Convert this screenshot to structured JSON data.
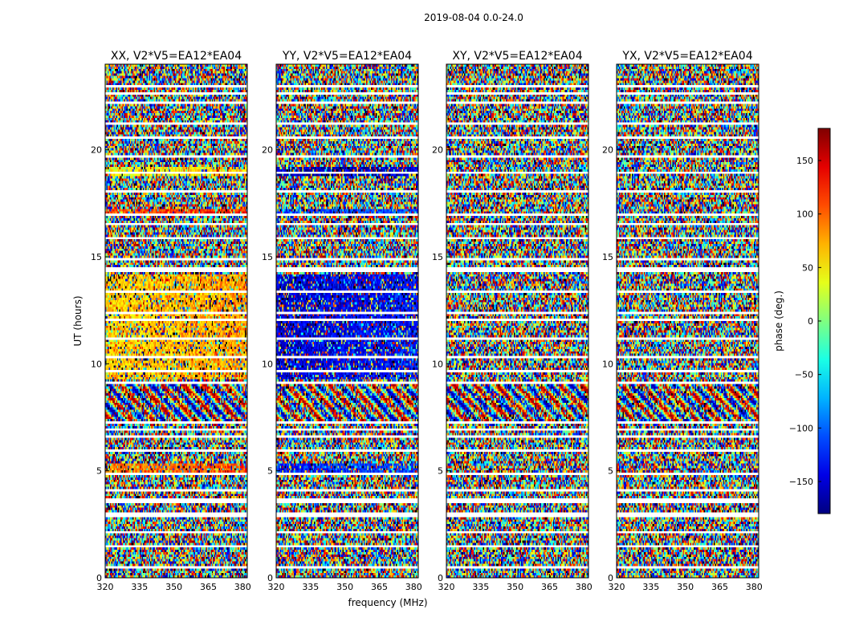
{
  "suptitle": "2019-08-04 0.0-24.0",
  "chart_data": {
    "type": "heatmap",
    "title": "2019-08-04 0.0-24.0",
    "xlabel": "frequency (MHz)",
    "ylabel": "UT (hours)",
    "xlim": [
      320,
      382
    ],
    "ylim": [
      0,
      24
    ],
    "xticks": [
      320,
      335,
      350,
      365,
      380
    ],
    "yticks": [
      0,
      5,
      10,
      15,
      20
    ],
    "panels": [
      {
        "title": "XX, V2*V5=EA12*EA04",
        "pol": "XX"
      },
      {
        "title": "YY, V2*V5=EA12*EA04",
        "pol": "YY"
      },
      {
        "title": "XY, V2*V5=EA12*EA04",
        "pol": "XY"
      },
      {
        "title": "YX, V2*V5=EA12*EA04",
        "pol": "YX"
      }
    ],
    "colorbar": {
      "label": "phase (deg.)",
      "range": [
        -180,
        180
      ],
      "ticks": [
        -150,
        -100,
        -50,
        0,
        50,
        100,
        150
      ],
      "colormap": "jet"
    },
    "blank_rows_hours": [
      0.45,
      1.45,
      2.15,
      2.95,
      3.6,
      4.05,
      4.9,
      5.9,
      6.6,
      6.95,
      7.25,
      9.1,
      9.7,
      10.35,
      11.2,
      12.05,
      12.4,
      13.4,
      14.4,
      14.9,
      15.85,
      16.55,
      16.95,
      18.05,
      18.95,
      19.65,
      20.6,
      21.2,
      22.2,
      22.6,
      22.95
    ],
    "coherent_segments": [
      {
        "t_start": 9.3,
        "t_end": 14.2,
        "XX_phase": 60,
        "YY_phase": -150
      },
      {
        "t_start": 18.8,
        "t_end": 19.2,
        "XX_phase": 40,
        "YY_phase": -170
      },
      {
        "t_start": 16.9,
        "t_end": 17.2,
        "XX_phase": 110,
        "YY_phase": -120
      },
      {
        "t_start": 4.95,
        "t_end": 5.3,
        "XX_phase": 90,
        "YY_phase": -130
      }
    ],
    "fringe_band_hours": [
      7.2,
      9.1
    ]
  }
}
